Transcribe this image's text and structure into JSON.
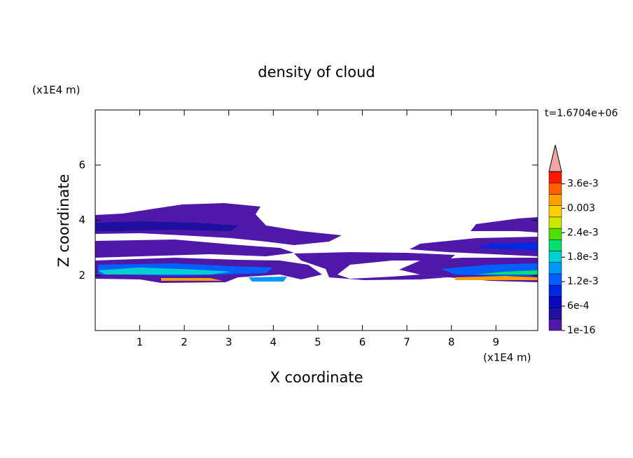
{
  "chart_data": {
    "type": "contour",
    "title": "density of cloud",
    "x_label": "X coordinate",
    "y_label": "Z coordinate",
    "x_unit": "(x1E4 m)",
    "y_unit": "(x1E4 m)",
    "annotation": "t=1.6704e+06",
    "xlim": [
      0,
      9.94
    ],
    "ylim": [
      0,
      8
    ],
    "xticks": [
      1,
      2,
      3,
      4,
      5,
      6,
      7,
      8,
      9
    ],
    "yticks": [
      2,
      4,
      6
    ],
    "colorbar": {
      "clim": [
        1e-16,
        0.0039
      ],
      "ticks": [
        1e-16,
        {
          "value": 0.0006,
          "label": "6e-4"
        },
        {
          "value": 0.0012,
          "label": "1.2e-3"
        },
        {
          "value": 0.0018,
          "label": "1.8e-3"
        },
        {
          "value": 0.0024,
          "label": "2.4e-3"
        },
        0.003,
        {
          "value": 0.0036,
          "label": "3.6e-3"
        }
      ],
      "colors": [
        "#5018a8",
        "#2010a0",
        "#0808c0",
        "#0028e0",
        "#0060ff",
        "#0098ff",
        "#00d0d0",
        "#00e070",
        "#50e000",
        "#d0e800",
        "#ffd000",
        "#ffa000",
        "#ff6000",
        "#ff1800"
      ],
      "extend_color": "#f4a6a6"
    }
  }
}
